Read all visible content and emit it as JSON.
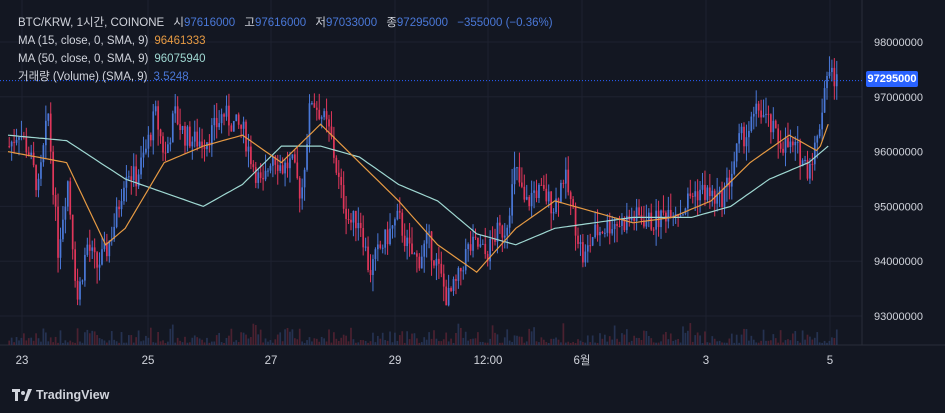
{
  "legend": {
    "symbol": "BTC/KRW, 1시간, COINONE",
    "open_label": "시",
    "open": "97616000",
    "high_label": "고",
    "high": "97616000",
    "low_label": "저",
    "low": "97033000",
    "close_label": "종",
    "close": "97295000",
    "change": "−355000 (−0.36%)",
    "ma15_label": "MA (15, close, 0, SMA, 9)",
    "ma15_value": "96461333",
    "ma50_label": "MA (50, close, 0, SMA, 9)",
    "ma50_value": "96075940",
    "vol_label": "거래량 (Volume) (SMA, 9)",
    "vol_value": "3.5248"
  },
  "current_price_tag": "97295000",
  "branding": "TradingView",
  "colors": {
    "background": "#131722",
    "up": "#4a78d8",
    "down": "#e0365a",
    "ma15": "#e69a43",
    "ma50": "#9fd8d2",
    "grid": "#1e2230",
    "price_tag": "#2962ff"
  },
  "chart_data": {
    "type": "candlestick",
    "y_ticks": [
      93000000,
      94000000,
      95000000,
      96000000,
      97000000,
      98000000
    ],
    "y_tick_labels": [
      "93000000",
      "94000000",
      "95000000",
      "96000000",
      "97000000",
      "98000000"
    ],
    "x_tick_labels": [
      "23",
      "25",
      "27",
      "29",
      "12:00",
      "6월",
      "3",
      "5"
    ],
    "ylim": [
      92300000,
      98300000
    ],
    "approx_candles": 340,
    "close_path_key_points": [
      [
        0,
        96100000
      ],
      [
        10,
        96400000
      ],
      [
        20,
        96000000
      ],
      [
        30,
        95300000
      ],
      [
        40,
        96700000
      ],
      [
        50,
        94200000
      ],
      [
        60,
        95500000
      ],
      [
        70,
        93300000
      ],
      [
        80,
        94300000
      ],
      [
        90,
        93900000
      ],
      [
        100,
        94200000
      ],
      [
        110,
        94800000
      ],
      [
        120,
        95700000
      ],
      [
        130,
        95500000
      ],
      [
        140,
        96000000
      ],
      [
        150,
        96700000
      ],
      [
        160,
        95900000
      ],
      [
        170,
        96700000
      ],
      [
        180,
        96300000
      ],
      [
        190,
        96200000
      ],
      [
        200,
        96200000
      ],
      [
        210,
        96400000
      ],
      [
        220,
        96700000
      ],
      [
        230,
        96500000
      ],
      [
        240,
        96400000
      ],
      [
        250,
        95800000
      ],
      [
        260,
        95300000
      ],
      [
        270,
        96000000
      ],
      [
        280,
        95700000
      ],
      [
        290,
        95800000
      ],
      [
        300,
        95200000
      ],
      [
        310,
        97000000
      ],
      [
        320,
        96700000
      ],
      [
        330,
        96300000
      ],
      [
        340,
        95300000
      ],
      [
        350,
        94700000
      ],
      [
        360,
        94800000
      ],
      [
        370,
        93800000
      ],
      [
        380,
        94200000
      ],
      [
        390,
        94500000
      ],
      [
        400,
        94800000
      ],
      [
        410,
        94200000
      ],
      [
        420,
        94000000
      ],
      [
        430,
        94400000
      ],
      [
        440,
        93900000
      ],
      [
        450,
        93300000
      ],
      [
        460,
        93600000
      ],
      [
        470,
        94200000
      ],
      [
        480,
        94300000
      ],
      [
        490,
        94100000
      ],
      [
        500,
        94500000
      ],
      [
        510,
        94600000
      ],
      [
        520,
        95700000
      ],
      [
        530,
        95000000
      ],
      [
        540,
        95300000
      ],
      [
        550,
        95200000
      ],
      [
        560,
        95000000
      ],
      [
        570,
        95600000
      ],
      [
        580,
        94800000
      ],
      [
        590,
        94000000
      ],
      [
        600,
        94500000
      ],
      [
        610,
        94600000
      ],
      [
        620,
        94700000
      ],
      [
        630,
        94700000
      ],
      [
        640,
        94800000
      ],
      [
        650,
        94800000
      ],
      [
        660,
        94700000
      ],
      [
        670,
        94800000
      ],
      [
        680,
        95000000
      ],
      [
        690,
        94900000
      ],
      [
        700,
        95200000
      ],
      [
        710,
        95300000
      ],
      [
        720,
        95200000
      ],
      [
        730,
        95100000
      ],
      [
        740,
        95500000
      ],
      [
        750,
        96200000
      ],
      [
        760,
        96400000
      ],
      [
        770,
        96800000
      ],
      [
        780,
        96500000
      ],
      [
        790,
        96200000
      ],
      [
        800,
        96100000
      ],
      [
        810,
        96000000
      ],
      [
        820,
        95700000
      ],
      [
        830,
        96200000
      ],
      [
        840,
        97500000
      ],
      [
        850,
        97300000
      ]
    ],
    "ma15_values": [
      [
        0,
        96000000
      ],
      [
        60,
        95800000
      ],
      [
        100,
        94300000
      ],
      [
        120,
        94600000
      ],
      [
        160,
        95800000
      ],
      [
        200,
        96100000
      ],
      [
        240,
        96300000
      ],
      [
        280,
        95800000
      ],
      [
        320,
        96500000
      ],
      [
        360,
        95800000
      ],
      [
        400,
        95100000
      ],
      [
        440,
        94300000
      ],
      [
        480,
        93800000
      ],
      [
        520,
        94600000
      ],
      [
        560,
        95100000
      ],
      [
        600,
        94900000
      ],
      [
        640,
        94700000
      ],
      [
        680,
        94800000
      ],
      [
        720,
        95100000
      ],
      [
        760,
        95800000
      ],
      [
        800,
        96300000
      ],
      [
        830,
        96000000
      ],
      [
        840,
        96500000
      ]
    ],
    "ma50_values": [
      [
        0,
        96300000
      ],
      [
        60,
        96200000
      ],
      [
        120,
        95500000
      ],
      [
        200,
        95000000
      ],
      [
        240,
        95400000
      ],
      [
        280,
        96100000
      ],
      [
        320,
        96100000
      ],
      [
        360,
        95900000
      ],
      [
        400,
        95400000
      ],
      [
        440,
        95100000
      ],
      [
        480,
        94500000
      ],
      [
        520,
        94300000
      ],
      [
        560,
        94600000
      ],
      [
        600,
        94700000
      ],
      [
        640,
        94800000
      ],
      [
        700,
        94800000
      ],
      [
        740,
        95000000
      ],
      [
        780,
        95500000
      ],
      [
        820,
        95800000
      ],
      [
        840,
        96100000
      ]
    ]
  }
}
